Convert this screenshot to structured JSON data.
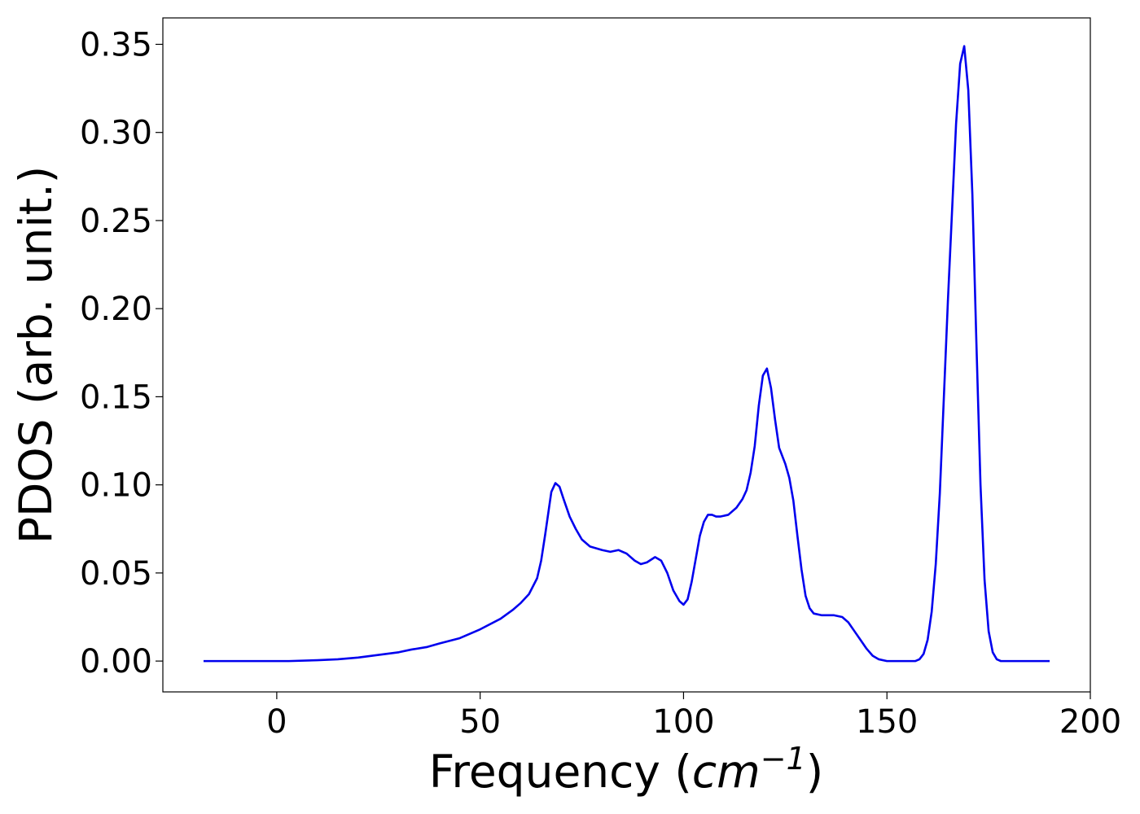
{
  "chart_data": {
    "type": "line",
    "title": "",
    "xlabel": {
      "prefix": "Frequency (",
      "unit_base": "cm",
      "unit_exp": "−1",
      "suffix": ")"
    },
    "ylabel": "PDOS (arb. unit.)",
    "xlim": [
      -28,
      200
    ],
    "ylim": [
      -0.0175,
      0.365
    ],
    "xticks": [
      0,
      50,
      100,
      150,
      200
    ],
    "xtick_labels": [
      "0",
      "50",
      "100",
      "150",
      "200"
    ],
    "yticks": [
      0.0,
      0.05,
      0.1,
      0.15,
      0.2,
      0.25,
      0.3,
      0.35
    ],
    "ytick_labels": [
      "0.00",
      "0.05",
      "0.10",
      "0.15",
      "0.20",
      "0.25",
      "0.30",
      "0.35"
    ],
    "grid": false,
    "legend": "none",
    "series": [
      {
        "color": "#0000ee",
        "points": [
          [
            -18,
            0.0
          ],
          [
            0,
            0.0
          ],
          [
            3,
            0.0
          ],
          [
            10,
            0.0005
          ],
          [
            15,
            0.001
          ],
          [
            20,
            0.002
          ],
          [
            25,
            0.0035
          ],
          [
            30,
            0.005
          ],
          [
            33,
            0.0065
          ],
          [
            37,
            0.008
          ],
          [
            40,
            0.01
          ],
          [
            45,
            0.013
          ],
          [
            50,
            0.018
          ],
          [
            55,
            0.024
          ],
          [
            58,
            0.029
          ],
          [
            60,
            0.033
          ],
          [
            62,
            0.038
          ],
          [
            64,
            0.047
          ],
          [
            65,
            0.057
          ],
          [
            66,
            0.072
          ],
          [
            67,
            0.088
          ],
          [
            67.5,
            0.096
          ],
          [
            68.5,
            0.101
          ],
          [
            69.5,
            0.099
          ],
          [
            70.5,
            0.092
          ],
          [
            72,
            0.082
          ],
          [
            73.5,
            0.075
          ],
          [
            75,
            0.069
          ],
          [
            77,
            0.065
          ],
          [
            80,
            0.063
          ],
          [
            82,
            0.062
          ],
          [
            84,
            0.063
          ],
          [
            86,
            0.061
          ],
          [
            88,
            0.057
          ],
          [
            89.5,
            0.055
          ],
          [
            91,
            0.056
          ],
          [
            93,
            0.059
          ],
          [
            94.5,
            0.057
          ],
          [
            96,
            0.05
          ],
          [
            97.5,
            0.04
          ],
          [
            99,
            0.034
          ],
          [
            100,
            0.032
          ],
          [
            101,
            0.035
          ],
          [
            102,
            0.045
          ],
          [
            103,
            0.058
          ],
          [
            104,
            0.071
          ],
          [
            105,
            0.079
          ],
          [
            106,
            0.083
          ],
          [
            107,
            0.083
          ],
          [
            108,
            0.082
          ],
          [
            109,
            0.082
          ],
          [
            111,
            0.083
          ],
          [
            113,
            0.087
          ],
          [
            114.5,
            0.092
          ],
          [
            115.5,
            0.097
          ],
          [
            116.5,
            0.107
          ],
          [
            117.5,
            0.122
          ],
          [
            118.5,
            0.145
          ],
          [
            119.5,
            0.162
          ],
          [
            120.5,
            0.166
          ],
          [
            121.5,
            0.155
          ],
          [
            122.5,
            0.137
          ],
          [
            123.5,
            0.121
          ],
          [
            125,
            0.112
          ],
          [
            126,
            0.104
          ],
          [
            127,
            0.091
          ],
          [
            128,
            0.071
          ],
          [
            129,
            0.052
          ],
          [
            130,
            0.037
          ],
          [
            131,
            0.03
          ],
          [
            132,
            0.027
          ],
          [
            134,
            0.026
          ],
          [
            137,
            0.026
          ],
          [
            139,
            0.025
          ],
          [
            140.5,
            0.022
          ],
          [
            142,
            0.017
          ],
          [
            143.5,
            0.012
          ],
          [
            145,
            0.007
          ],
          [
            146.5,
            0.003
          ],
          [
            148,
            0.001
          ],
          [
            150,
            0.0
          ],
          [
            157,
            0.0
          ],
          [
            158,
            0.001
          ],
          [
            159,
            0.004
          ],
          [
            160,
            0.012
          ],
          [
            161,
            0.028
          ],
          [
            162,
            0.055
          ],
          [
            163,
            0.095
          ],
          [
            164,
            0.15
          ],
          [
            165,
            0.205
          ],
          [
            166,
            0.255
          ],
          [
            167,
            0.305
          ],
          [
            168,
            0.339
          ],
          [
            169,
            0.349
          ],
          [
            170,
            0.324
          ],
          [
            171,
            0.265
          ],
          [
            172,
            0.18
          ],
          [
            173,
            0.1
          ],
          [
            174,
            0.046
          ],
          [
            175,
            0.017
          ],
          [
            176,
            0.005
          ],
          [
            177,
            0.001
          ],
          [
            178,
            0.0
          ],
          [
            180,
            0.0
          ],
          [
            190,
            0.0
          ]
        ]
      }
    ]
  }
}
